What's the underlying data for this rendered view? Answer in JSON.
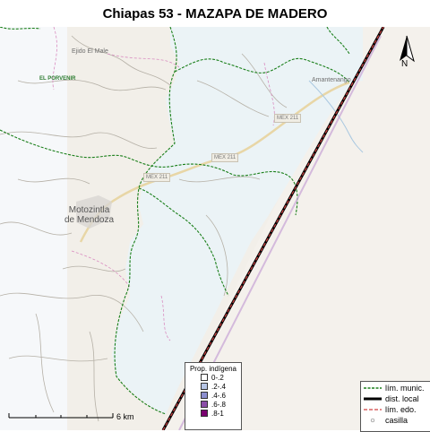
{
  "title": "Chiapas 53 - MAZAPA DE MADERO",
  "map": {
    "places": {
      "ejido_el_male": "Ejido El Male",
      "el_porvenir": "EL PORVENIR",
      "amantenango": "Amantenango",
      "motozintla_line1": "Motozintla",
      "motozintla_line2": "de Mendoza"
    },
    "highway_labels": [
      "MEX 211",
      "MEX 211",
      "MEX 211"
    ],
    "north_label": "N",
    "scale_label": "6 km",
    "colors": {
      "municipal_boundary": "#1a7f1a",
      "district_boundary": "#000000",
      "state_boundary": "#d04040",
      "district_fill": "#eaf3f7",
      "basemap": "#f2efe9"
    }
  },
  "legend_indigenous": {
    "title": "Prop. indígena",
    "items": [
      {
        "label": "0-.2",
        "color": "#ffffff"
      },
      {
        "label": ".2-.4",
        "color": "#b7c6e6"
      },
      {
        "label": ".4-.6",
        "color": "#8c8fcf"
      },
      {
        "label": ".6-.8",
        "color": "#8b4fa8"
      },
      {
        "label": ".8-1",
        "color": "#7a0070"
      }
    ]
  },
  "legend_lines": {
    "items": [
      {
        "label": "lím. munic.",
        "icon": "dashed-green-line"
      },
      {
        "label": "dist. local",
        "icon": "thick-black-line"
      },
      {
        "label": "lím. edo.",
        "icon": "red-dashed-line"
      },
      {
        "label": "casilla",
        "icon": "circle-marker"
      }
    ]
  }
}
